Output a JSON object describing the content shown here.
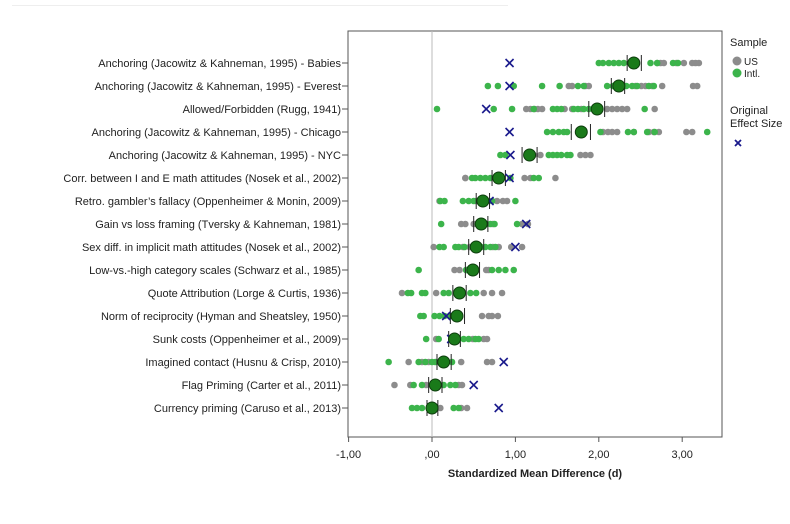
{
  "chart_data": {
    "type": "scatter",
    "title": "",
    "xlabel": "Standardized Mean Difference (d)",
    "ylabel": "",
    "xlim": [
      -1.0,
      3.5
    ],
    "x_ticks": [
      -1,
      0,
      1,
      2,
      3
    ],
    "x_tick_labels": [
      "-1,00",
      ",00",
      "1,00",
      "2,00",
      "3,00"
    ],
    "grid": false,
    "reference_line_x": 0,
    "legend": {
      "position": "right",
      "sample_title": "Sample",
      "sample_entries": [
        {
          "label": "US",
          "color": "#8c8c8c"
        },
        {
          "label": "Intl.",
          "color": "#3cb44b"
        }
      ],
      "effect_title_line1": "Original",
      "effect_title_line2": "Effect Size",
      "effect_marker": "x",
      "effect_color": "#1a1a8c"
    },
    "colors": {
      "us": "#8c8c8c",
      "intl": "#3cb44b",
      "mean": "#1a7a1a",
      "original": "#1a1a8c"
    },
    "categories": [
      "Anchoring (Jacowitz & Kahneman, 1995) - Babies",
      "Anchoring (Jacowitz & Kahneman, 1995) - Everest",
      "Allowed/Forbidden (Rugg, 1941)",
      "Anchoring (Jacowitz & Kahneman, 1995) - Chicago",
      "Anchoring (Jacowitz & Kahneman, 1995) - NYC",
      "Corr. between I and E math attitudes (Nosek et al., 2002)",
      "Retro. gambler’s fallacy (Oppenheimer & Monin, 2009)",
      "Gain vs loss framing (Tversky & Kahneman, 1981)",
      "Sex diff. in implicit math attitudes (Nosek et al., 2002)",
      "Low-vs.-high category scales (Schwarz et al., 1985)",
      "Quote Attribution (Lorge & Curtis, 1936)",
      "Norm of reciprocity (Hyman and Sheatsley, 1950)",
      "Sunk costs (Oppenheimer et al., 2009)",
      "Imagined contact (Husnu & Crisp, 2010)",
      "Flag Priming (Carter et al., 2011)",
      "Currency priming (Caruso et al., 2013)"
    ],
    "pooled_mean": [
      2.42,
      2.24,
      1.98,
      1.79,
      1.17,
      0.8,
      0.61,
      0.59,
      0.53,
      0.49,
      0.33,
      0.3,
      0.27,
      0.14,
      0.04,
      0.0
    ],
    "ci_low": [
      2.34,
      2.15,
      1.88,
      1.67,
      1.08,
      0.72,
      0.53,
      0.5,
      0.44,
      0.4,
      0.25,
      0.22,
      0.2,
      0.06,
      -0.04,
      -0.06
    ],
    "ci_high": [
      2.51,
      2.31,
      2.07,
      1.9,
      1.26,
      0.88,
      0.69,
      0.67,
      0.62,
      0.57,
      0.41,
      0.39,
      0.34,
      0.23,
      0.12,
      0.07
    ],
    "original_effect": [
      0.93,
      0.93,
      0.65,
      0.93,
      0.94,
      0.93,
      0.69,
      1.13,
      1.0,
      0.5,
      null,
      0.17,
      0.23,
      0.86,
      0.5,
      0.8
    ],
    "series": [
      {
        "name": "US",
        "points": [
          [
            2.7,
            2.74,
            2.78,
            2.93,
            3.02,
            3.12,
            3.16,
            3.2
          ],
          [
            1.64,
            1.68,
            1.84,
            1.88,
            2.44,
            2.51,
            2.56,
            2.64,
            2.76,
            3.13,
            3.18
          ],
          [
            1.13,
            1.18,
            1.23,
            1.27,
            1.32,
            1.59,
            1.68,
            1.79,
            2.1,
            2.16,
            2.22,
            2.28,
            2.34,
            2.67
          ],
          [
            2.05,
            2.11,
            2.16,
            2.22,
            2.42,
            2.6,
            2.66,
            2.72,
            3.05,
            3.12
          ],
          [
            1.16,
            1.22,
            1.3,
            1.78,
            1.84,
            1.9
          ],
          [
            0.4,
            0.4,
            0.83,
            1.11,
            1.18,
            1.48
          ],
          [
            0.09,
            0.53,
            0.78,
            0.85,
            0.9
          ],
          [
            0.35,
            0.4,
            0.5,
            0.73,
            1.08,
            1.15
          ],
          [
            0.02,
            0.37,
            0.45,
            0.73,
            0.8,
            0.95,
            1.08
          ],
          [
            0.27,
            0.33,
            0.41,
            0.65,
            0.68
          ],
          [
            -0.36,
            0.05,
            0.37,
            0.62,
            0.72,
            0.84
          ],
          [
            0.6,
            0.68,
            0.72,
            0.79
          ],
          [
            0.05,
            0.49,
            0.62,
            0.66
          ],
          [
            -0.28,
            -0.12,
            -0.04,
            0.35,
            0.72,
            0.66
          ],
          [
            -0.45,
            -0.26,
            -0.07,
            0.32,
            0.36
          ],
          [
            0.05,
            0.1,
            0.35,
            0.42
          ]
        ]
      },
      {
        "name": "Intl.",
        "points": [
          [
            2.0,
            2.05,
            2.12,
            2.18,
            2.24,
            2.3,
            2.62,
            2.7,
            2.89,
            2.95
          ],
          [
            0.67,
            0.79,
            0.98,
            1.32,
            1.53,
            1.75,
            1.82,
            2.1,
            2.17,
            2.22,
            2.33,
            2.4,
            2.46,
            2.6,
            2.66
          ],
          [
            0.06,
            0.74,
            0.96,
            1.22,
            1.45,
            1.5,
            1.55,
            1.7,
            1.75,
            1.82,
            1.88,
            2.55
          ],
          [
            1.38,
            1.45,
            1.52,
            1.58,
            1.62,
            2.02,
            2.35,
            2.42,
            2.58,
            2.67,
            3.3
          ],
          [
            0.82,
            0.88,
            1.4,
            1.45,
            1.5,
            1.55,
            1.62,
            1.66
          ],
          [
            0.48,
            0.52,
            0.58,
            0.64,
            0.7,
            0.78,
            0.94,
            1.22,
            1.28
          ],
          [
            0.1,
            0.15,
            0.37,
            0.44,
            0.5,
            0.58,
            0.66,
            0.72,
            1.0
          ],
          [
            0.11,
            0.55,
            0.65,
            0.7,
            0.75,
            1.02
          ],
          [
            0.09,
            0.14,
            0.28,
            0.32,
            0.39,
            0.59,
            0.64,
            0.7,
            0.76
          ],
          [
            -0.16,
            0.41,
            0.46,
            0.72,
            0.8,
            0.88,
            0.98
          ],
          [
            -0.29,
            -0.25,
            -0.12,
            -0.08,
            0.14,
            0.2,
            0.46,
            0.53
          ],
          [
            -0.14,
            -0.1,
            0.03,
            0.09,
            0.15,
            0.22,
            0.24
          ],
          [
            -0.07,
            0.08,
            0.3,
            0.38,
            0.44,
            0.52,
            0.56
          ],
          [
            -0.52,
            -0.16,
            -0.08,
            0.0,
            0.04,
            0.24
          ],
          [
            -0.22,
            -0.12,
            0.06,
            0.14,
            0.22,
            0.28
          ],
          [
            -0.24,
            -0.18,
            -0.12,
            0.26,
            0.32
          ]
        ]
      }
    ]
  }
}
